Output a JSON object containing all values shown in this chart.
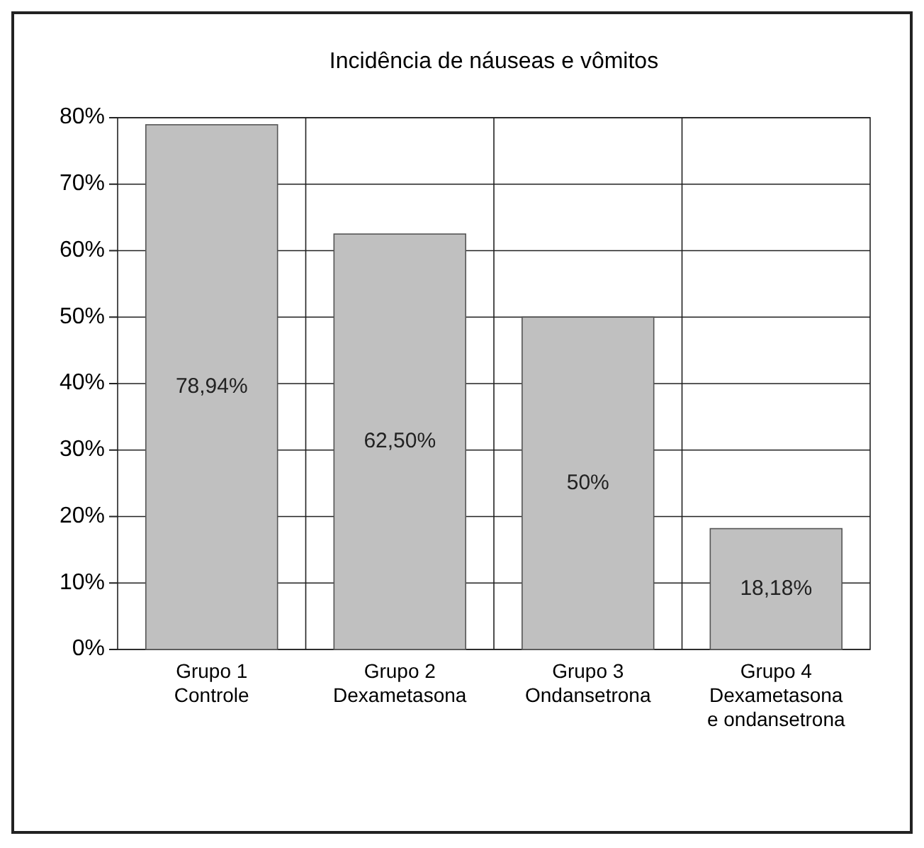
{
  "chart_data": {
    "type": "bar",
    "title": "Incidência de náuseas e vômitos",
    "categories": [
      "Grupo 1\nControle",
      "Grupo 2\nDexametasona",
      "Grupo 3\nOndansetrona",
      "Grupo 4\nDexametasona\ne ondansetrona"
    ],
    "values": [
      78.94,
      62.5,
      50,
      18.18
    ],
    "value_labels": [
      "78,94%",
      "62,50%",
      "50%",
      "18,18%"
    ],
    "color": "#c0c0c0",
    "ylim": [
      0,
      80
    ],
    "yticks": [
      {
        "value": 0,
        "label": "0%"
      },
      {
        "value": 10,
        "label": "10%"
      },
      {
        "value": 20,
        "label": "20%"
      },
      {
        "value": 30,
        "label": "30%"
      },
      {
        "value": 40,
        "label": "40%"
      },
      {
        "value": 50,
        "label": "50%"
      },
      {
        "value": 60,
        "label": "60%"
      },
      {
        "value": 70,
        "label": "70%"
      },
      {
        "value": 80,
        "label": "80%"
      }
    ],
    "grid": true
  }
}
